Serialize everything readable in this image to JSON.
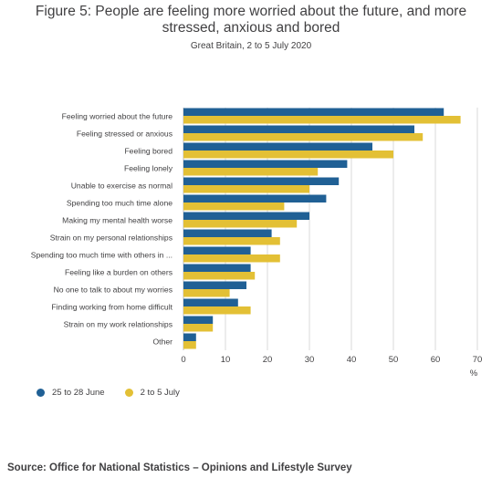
{
  "colors": {
    "series1": "#206095",
    "series2": "#e3c035",
    "grid": "#d9d9d9",
    "text": "#414042"
  },
  "chart_data": {
    "type": "bar",
    "orientation": "horizontal",
    "title": "Figure 5: People are feeling more worried about the future, and more stressed, anxious and bored",
    "subtitle": "Great Britain, 2 to 5 July 2020",
    "xlabel": "%",
    "xlim": [
      0,
      70
    ],
    "xticks": [
      0,
      10,
      20,
      30,
      40,
      50,
      60,
      70
    ],
    "grid": true,
    "legend_position": "bottom-left",
    "categories": [
      "Feeling worried about the future",
      "Feeling stressed or anxious",
      "Feeling bored",
      "Feeling lonely",
      "Unable to exercise as normal",
      "Spending too much time alone",
      "Making my mental health worse",
      "Strain on my personal relationships",
      "Spending too much time with others in ...",
      "Feeling like a burden on others",
      "No one to talk to about my worries",
      "Finding working from home difficult",
      "Strain on my work relationships",
      "Other"
    ],
    "series": [
      {
        "name": "25 to 28 June",
        "values": [
          62,
          55,
          45,
          39,
          37,
          34,
          30,
          21,
          16,
          16,
          15,
          13,
          7,
          3
        ]
      },
      {
        "name": "2 to 5 July",
        "values": [
          66,
          57,
          50,
          32,
          30,
          24,
          27,
          23,
          23,
          17,
          11,
          16,
          7,
          3
        ]
      }
    ]
  },
  "source": "Source: Office for National Statistics – Opinions and Lifestyle Survey"
}
